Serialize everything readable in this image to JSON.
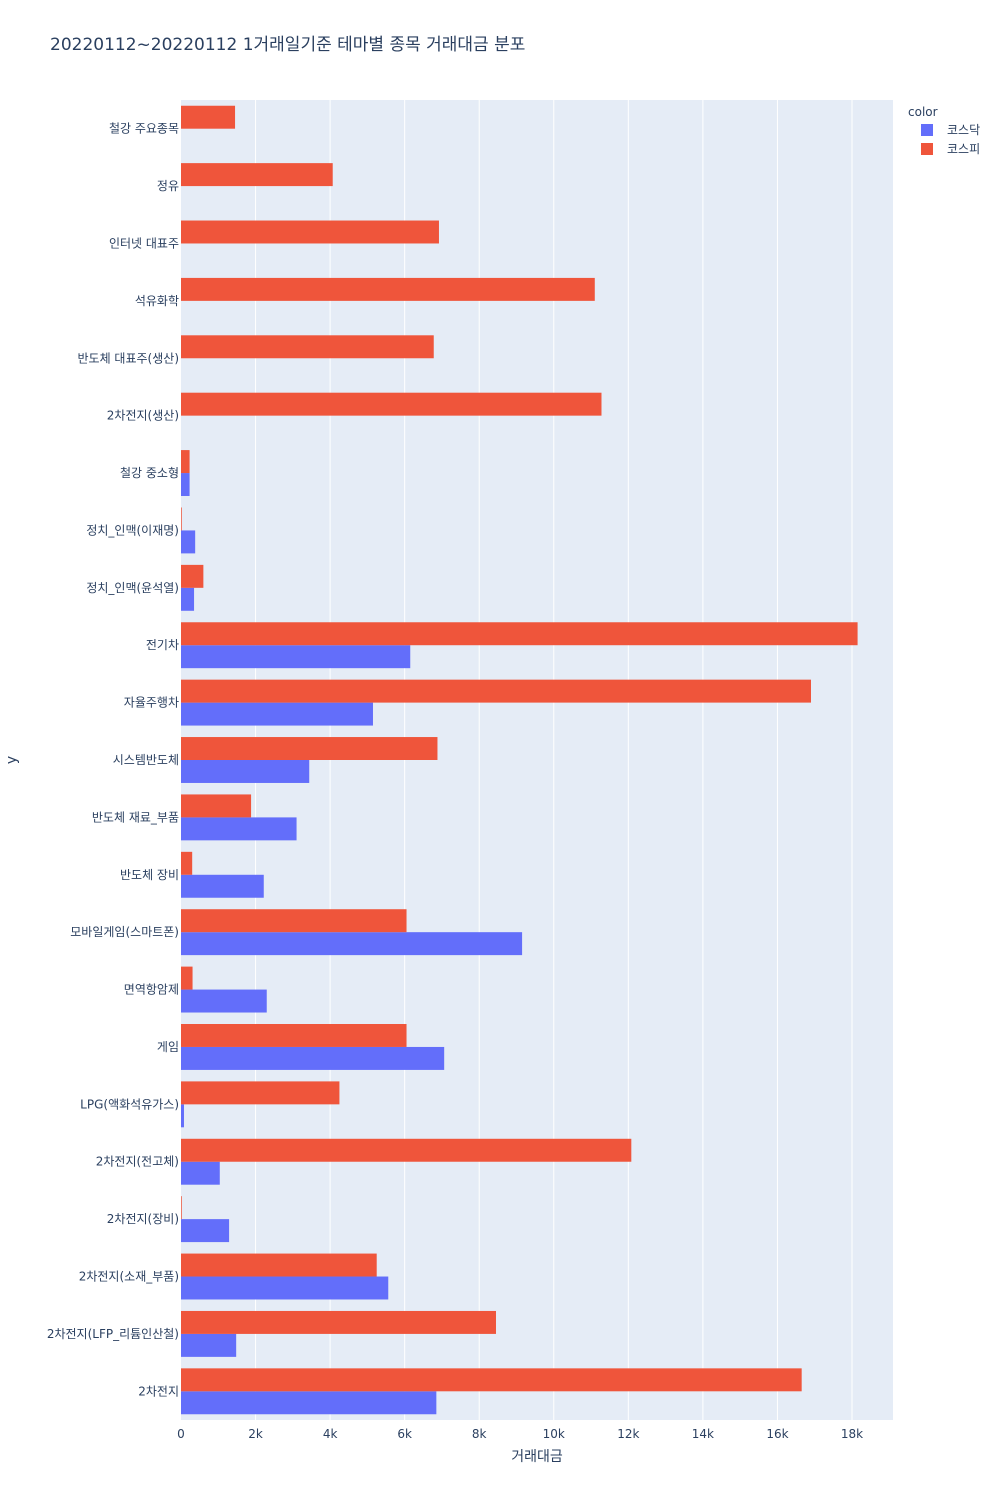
{
  "chart_data": {
    "type": "bar",
    "orientation": "horizontal",
    "barmode": "group",
    "title": "20220112~20220112 1거래일기준 테마별 종목 거래대금 분포",
    "xlabel": "거래대금",
    "ylabel": "y",
    "xlim": [
      0,
      19100
    ],
    "x_ticks": [
      0,
      2000,
      4000,
      6000,
      8000,
      10000,
      12000,
      14000,
      16000,
      18000
    ],
    "x_tick_labels": [
      "0",
      "2k",
      "4k",
      "6k",
      "8k",
      "10k",
      "12k",
      "14k",
      "16k",
      "18k"
    ],
    "grid": true,
    "legend": {
      "title": "color",
      "position": "top-right"
    },
    "categories": [
      "2차전지",
      "2차전지(LFP_리튬인산철)",
      "2차전지(소재_부품)",
      "2차전지(장비)",
      "2차전지(전고체)",
      "LPG(액화석유가스)",
      "게임",
      "면역항암제",
      "모바일게임(스마트폰)",
      "반도체 장비",
      "반도체 재료_부품",
      "시스템반도체",
      "자율주행차",
      "전기차",
      "정치_인맥(윤석열)",
      "정치_인맥(이재명)",
      "철강 중소형",
      "2차전지(생산)",
      "반도체 대표주(생산)",
      "석유화학",
      "인터넷 대표주",
      "정유",
      "철강 주요종목"
    ],
    "series": [
      {
        "name": "코스닥",
        "color": "#636efa",
        "values": [
          6850,
          1480,
          5560,
          1290,
          1040,
          80,
          7060,
          2300,
          9150,
          2220,
          3100,
          3440,
          5150,
          6150,
          350,
          380,
          230,
          null,
          null,
          null,
          null,
          null,
          null
        ]
      },
      {
        "name": "코스피",
        "color": "#ef553b",
        "values": [
          16650,
          8450,
          5250,
          20,
          12080,
          4250,
          6050,
          310,
          6050,
          300,
          1880,
          6880,
          16900,
          18150,
          600,
          20,
          230,
          11280,
          6780,
          11100,
          6920,
          4070,
          1450
        ]
      }
    ]
  }
}
